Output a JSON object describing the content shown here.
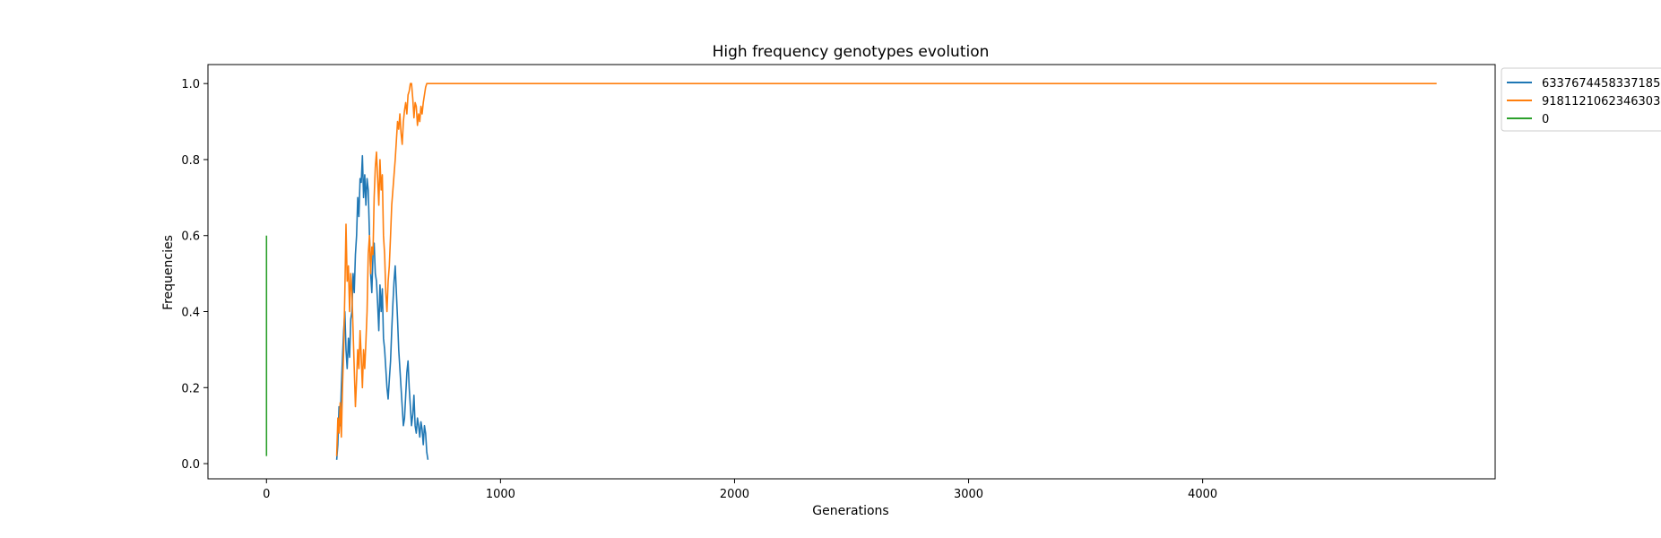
{
  "chart_data": {
    "type": "line",
    "title": "High frequency genotypes evolution",
    "xlabel": "Generations",
    "ylabel": "Frequencies",
    "xlim": [
      -250,
      5250
    ],
    "ylim": [
      -0.04,
      1.05
    ],
    "xticks": [
      0,
      1000,
      2000,
      3000,
      4000
    ],
    "yticks": [
      0.0,
      0.2,
      0.4,
      0.6,
      0.8,
      1.0
    ],
    "xtick_labels": [
      "0",
      "1000",
      "2000",
      "3000",
      "4000"
    ],
    "ytick_labels": [
      "0.0",
      "0.2",
      "0.4",
      "0.6",
      "0.8",
      "1.0"
    ],
    "grid": false,
    "legend_position": "outside-top-right",
    "series": [
      {
        "name": "6337674458337185",
        "color": "#1f77b4",
        "x": [
          300,
          305,
          310,
          315,
          320,
          325,
          330,
          335,
          340,
          345,
          350,
          355,
          360,
          365,
          370,
          375,
          380,
          385,
          390,
          395,
          400,
          405,
          410,
          415,
          420,
          425,
          430,
          435,
          440,
          445,
          450,
          455,
          460,
          465,
          470,
          475,
          480,
          485,
          490,
          495,
          500,
          505,
          510,
          515,
          520,
          525,
          530,
          535,
          540,
          545,
          550,
          555,
          560,
          565,
          570,
          575,
          580,
          585,
          590,
          595,
          600,
          605,
          610,
          615,
          620,
          625,
          630,
          635,
          640,
          645,
          650,
          655,
          660,
          665,
          670,
          675,
          680,
          685,
          690
        ],
        "values": [
          0.01,
          0.05,
          0.15,
          0.1,
          0.2,
          0.28,
          0.35,
          0.4,
          0.3,
          0.25,
          0.33,
          0.28,
          0.38,
          0.4,
          0.5,
          0.45,
          0.55,
          0.6,
          0.7,
          0.65,
          0.75,
          0.74,
          0.81,
          0.7,
          0.76,
          0.68,
          0.75,
          0.72,
          0.6,
          0.5,
          0.45,
          0.55,
          0.58,
          0.5,
          0.48,
          0.42,
          0.35,
          0.47,
          0.4,
          0.46,
          0.33,
          0.3,
          0.25,
          0.2,
          0.17,
          0.22,
          0.27,
          0.35,
          0.42,
          0.48,
          0.52,
          0.45,
          0.38,
          0.3,
          0.25,
          0.2,
          0.15,
          0.1,
          0.12,
          0.18,
          0.24,
          0.27,
          0.2,
          0.15,
          0.1,
          0.13,
          0.18,
          0.1,
          0.08,
          0.12,
          0.1,
          0.07,
          0.11,
          0.09,
          0.05,
          0.1,
          0.08,
          0.03,
          0.01
        ]
      },
      {
        "name": "9181121062346303",
        "color": "#ff7f0e",
        "x": [
          300,
          305,
          310,
          315,
          320,
          325,
          330,
          335,
          340,
          345,
          350,
          355,
          360,
          365,
          370,
          375,
          380,
          385,
          390,
          395,
          400,
          405,
          410,
          415,
          420,
          425,
          430,
          435,
          440,
          445,
          450,
          455,
          460,
          465,
          470,
          475,
          480,
          485,
          490,
          495,
          500,
          505,
          510,
          515,
          520,
          525,
          530,
          535,
          540,
          545,
          550,
          555,
          560,
          565,
          570,
          575,
          580,
          585,
          590,
          595,
          600,
          605,
          610,
          615,
          620,
          625,
          630,
          635,
          640,
          645,
          650,
          655,
          660,
          665,
          670,
          675,
          680,
          685,
          690,
          5000
        ],
        "values": [
          0.02,
          0.12,
          0.08,
          0.16,
          0.07,
          0.2,
          0.3,
          0.45,
          0.63,
          0.48,
          0.52,
          0.4,
          0.5,
          0.45,
          0.35,
          0.25,
          0.15,
          0.22,
          0.3,
          0.25,
          0.35,
          0.28,
          0.2,
          0.3,
          0.25,
          0.32,
          0.4,
          0.55,
          0.6,
          0.5,
          0.57,
          0.55,
          0.7,
          0.78,
          0.82,
          0.75,
          0.68,
          0.8,
          0.72,
          0.76,
          0.6,
          0.55,
          0.45,
          0.4,
          0.48,
          0.52,
          0.6,
          0.68,
          0.72,
          0.76,
          0.8,
          0.85,
          0.9,
          0.88,
          0.92,
          0.87,
          0.84,
          0.9,
          0.93,
          0.95,
          0.92,
          0.97,
          0.98,
          1.0,
          1.0,
          0.96,
          0.91,
          0.95,
          0.94,
          0.89,
          0.92,
          0.9,
          0.94,
          0.92,
          0.95,
          0.97,
          0.99,
          1.0,
          1.0,
          1.0
        ]
      },
      {
        "name": "0",
        "color": "#2ca02c",
        "x": [
          0,
          0
        ],
        "values": [
          0.02,
          0.6
        ]
      }
    ]
  }
}
